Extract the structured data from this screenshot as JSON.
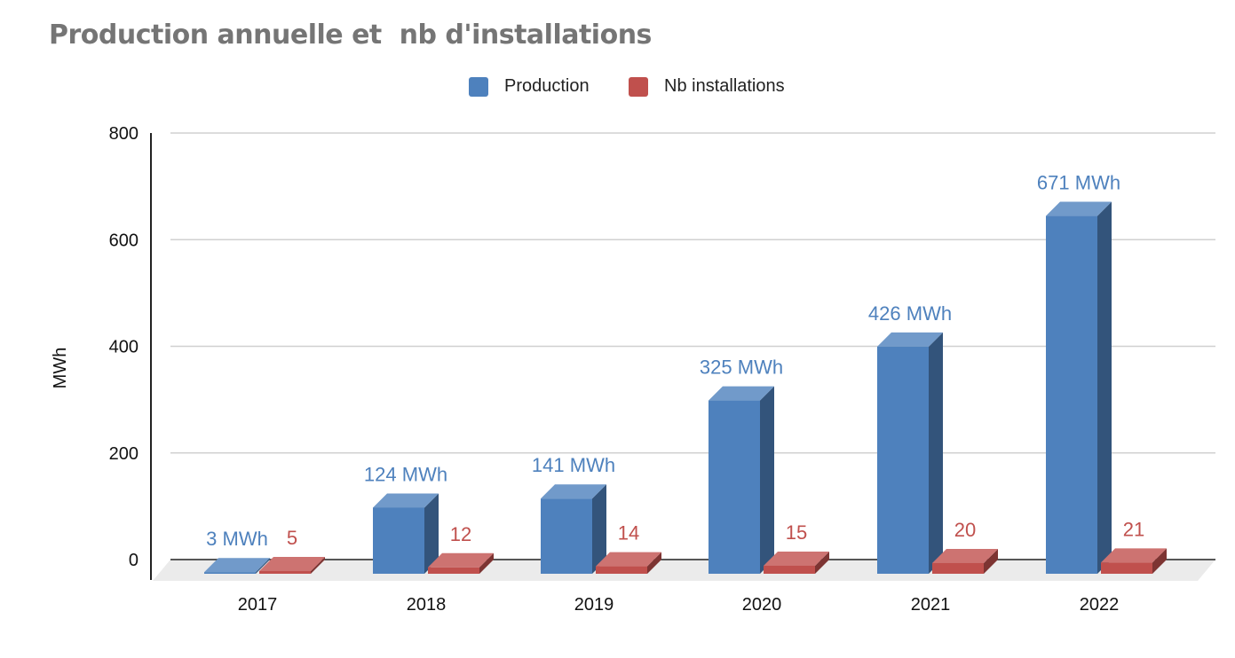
{
  "chart_data": {
    "type": "bar",
    "title": "Production annuelle et  nb d'installations",
    "ylabel": "MWh",
    "xlabel": "",
    "categories": [
      "2017",
      "2018",
      "2019",
      "2020",
      "2021",
      "2022"
    ],
    "ylim": [
      0,
      800
    ],
    "yticks": [
      "0",
      "200",
      "400",
      "600",
      "800"
    ],
    "grid": true,
    "legend_position": "top-center",
    "series": [
      {
        "name": "Production",
        "color": "#4E81BD",
        "values": [
          3,
          124,
          141,
          325,
          426,
          671
        ],
        "labels": [
          "3 MWh",
          "124 MWh",
          "141 MWh",
          "325 MWh",
          "426 MWh",
          "671 MWh"
        ]
      },
      {
        "name": "Nb installations",
        "color": "#C0504D",
        "values": [
          5,
          12,
          14,
          15,
          20,
          21
        ],
        "labels": [
          "5",
          "12",
          "14",
          "15",
          "20",
          "21"
        ]
      }
    ]
  }
}
